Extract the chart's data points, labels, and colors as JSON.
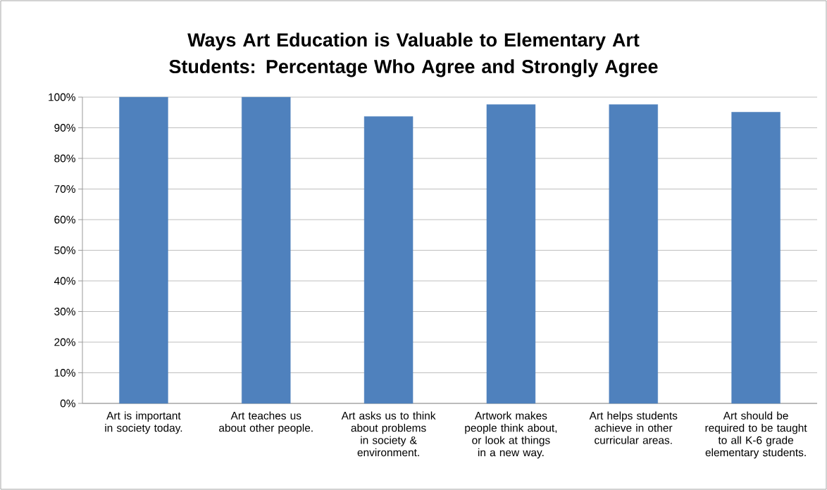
{
  "chart_data": {
    "type": "bar",
    "title": "Ways Art Education is Valuable to Elementary Art Students: Percentage Who Agree and Strongly Agree",
    "categories": [
      "Art is important in society today.",
      "Art teaches us about other people.",
      "Art asks us to think about problems in society & environment.",
      "Artwork makes people think about, or look at things in a new way.",
      "Art helps students achieve in other curricular areas.",
      "Art should be required to be taught to all K-6 grade elementary students."
    ],
    "values": [
      100,
      100,
      93.7,
      97.6,
      97.6,
      95.1
    ],
    "color": "#4f81bd",
    "ylim": [
      0,
      100
    ],
    "yticks": [
      {
        "value": 0,
        "label": "0%"
      },
      {
        "value": 10,
        "label": "10%"
      },
      {
        "value": 20,
        "label": "20%"
      },
      {
        "value": 30,
        "label": "30%"
      },
      {
        "value": 40,
        "label": "40%"
      },
      {
        "value": 50,
        "label": "50%"
      },
      {
        "value": 60,
        "label": "60%"
      },
      {
        "value": 70,
        "label": "70%"
      },
      {
        "value": 80,
        "label": "80%"
      },
      {
        "value": 90,
        "label": "90%"
      },
      {
        "value": 100,
        "label": "100%"
      }
    ],
    "grid": "y"
  }
}
